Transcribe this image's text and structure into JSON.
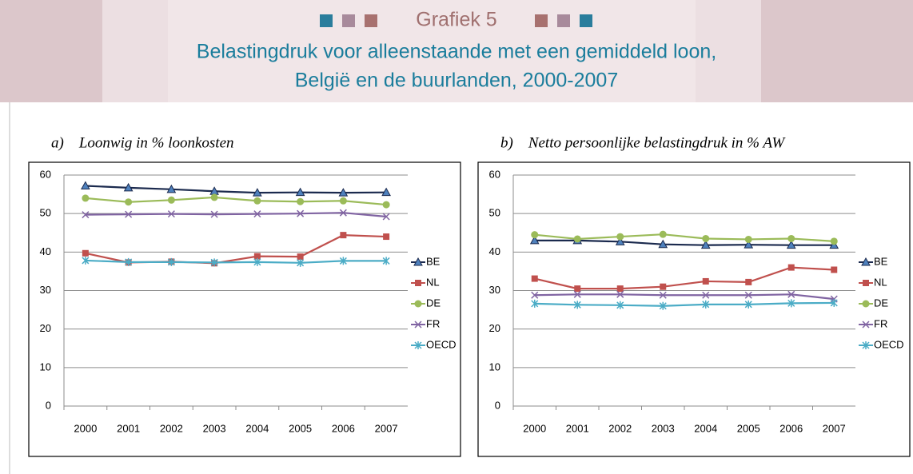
{
  "header": {
    "label": "Grafiek 5",
    "title_lines": [
      "Belastingdruk voor alleenstaande met een gemiddeld loon,",
      "België en de buurlanden, 2000-2007"
    ]
  },
  "chart_data": [
    {
      "type": "line",
      "title": "a)    Loonwig in % loonkosten",
      "categories": [
        "2000",
        "2001",
        "2002",
        "2003",
        "2004",
        "2005",
        "2006",
        "2007"
      ],
      "ylim": [
        0,
        60
      ],
      "yticks": [
        0,
        10,
        20,
        30,
        40,
        50,
        60
      ],
      "grid": true,
      "legend": "right",
      "series": [
        {
          "name": "BE",
          "color": "#1b2a4e",
          "marker": "triangle",
          "marker_color": "#4f81bd",
          "values": [
            57.2,
            56.7,
            56.3,
            55.8,
            55.4,
            55.5,
            55.4,
            55.5
          ]
        },
        {
          "name": "NL",
          "color": "#c0504d",
          "marker": "square",
          "marker_color": "#c0504d",
          "values": [
            39.7,
            37.3,
            37.5,
            37.1,
            38.9,
            38.8,
            44.4,
            44.0
          ]
        },
        {
          "name": "DE",
          "color": "#9bbb59",
          "marker": "circle",
          "marker_color": "#9bbb59",
          "values": [
            54.0,
            53.0,
            53.5,
            54.2,
            53.3,
            53.1,
            53.3,
            52.3
          ]
        },
        {
          "name": "FR",
          "color": "#8064a2",
          "marker": "x",
          "marker_color": "#8064a2",
          "values": [
            49.7,
            49.8,
            49.9,
            49.8,
            49.9,
            50.0,
            50.2,
            49.2
          ]
        },
        {
          "name": "OECD",
          "color": "#4bacc6",
          "marker": "asterisk",
          "marker_color": "#4bacc6",
          "values": [
            37.8,
            37.4,
            37.4,
            37.3,
            37.4,
            37.2,
            37.7,
            37.7
          ]
        }
      ]
    },
    {
      "type": "line",
      "title": "b)    Netto persoonlijke belastingdruk in % AW",
      "categories": [
        "2000",
        "2001",
        "2002",
        "2003",
        "2004",
        "2005",
        "2006",
        "2007"
      ],
      "ylim": [
        0,
        60
      ],
      "yticks": [
        0,
        10,
        20,
        30,
        40,
        50,
        60
      ],
      "grid": true,
      "legend": "right",
      "series": [
        {
          "name": "BE",
          "color": "#1b2a4e",
          "marker": "triangle",
          "marker_color": "#4f81bd",
          "values": [
            43.0,
            43.0,
            42.7,
            42.0,
            41.8,
            41.9,
            41.8,
            41.8
          ]
        },
        {
          "name": "NL",
          "color": "#c0504d",
          "marker": "square",
          "marker_color": "#c0504d",
          "values": [
            33.1,
            30.5,
            30.5,
            31.0,
            32.4,
            32.2,
            36.0,
            35.4
          ]
        },
        {
          "name": "DE",
          "color": "#9bbb59",
          "marker": "circle",
          "marker_color": "#9bbb59",
          "values": [
            44.5,
            43.4,
            44.0,
            44.6,
            43.5,
            43.3,
            43.5,
            42.8
          ]
        },
        {
          "name": "FR",
          "color": "#8064a2",
          "marker": "x",
          "marker_color": "#8064a2",
          "values": [
            28.8,
            29.0,
            29.0,
            28.8,
            28.8,
            28.8,
            29.0,
            27.8
          ]
        },
        {
          "name": "OECD",
          "color": "#4bacc6",
          "marker": "asterisk",
          "marker_color": "#4bacc6",
          "values": [
            26.6,
            26.3,
            26.2,
            26.0,
            26.4,
            26.4,
            26.7,
            26.8
          ]
        }
      ]
    }
  ]
}
